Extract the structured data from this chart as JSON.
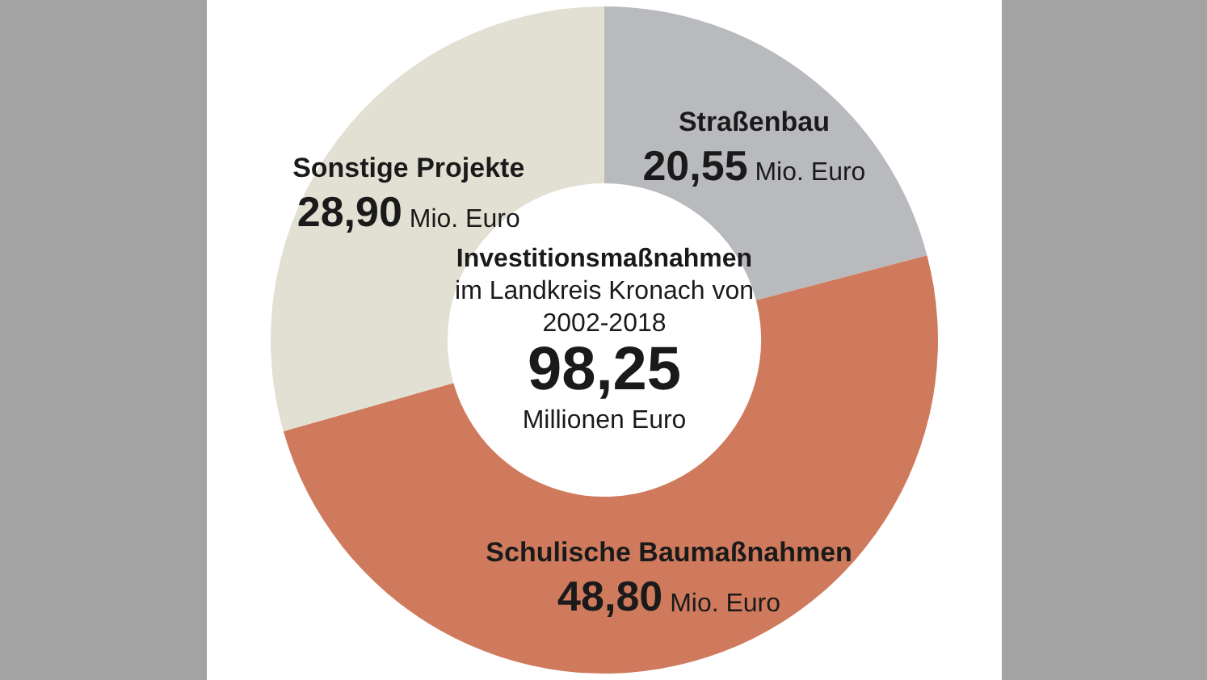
{
  "chart_data": {
    "type": "donut",
    "title": "Investitionsmaßnahmen",
    "subtitle": "im Landkreis Kronach von 2002-2018",
    "annotations": [
      "98,25",
      "Millionen Euro"
    ],
    "categories": [
      "Straßenbau",
      "Schulische Baumaßnahmen",
      "Sonstige Projekte"
    ],
    "values": [
      20.55,
      48.8,
      28.9
    ],
    "colors": [
      "#b9babd",
      "#cf7a5c",
      "#e2e0d3"
    ],
    "value_labels": [
      "20,55 Mio. Euro",
      "48,80 Mio. Euro",
      "28,90 Mio. Euro"
    ],
    "legend": false
  }
}
